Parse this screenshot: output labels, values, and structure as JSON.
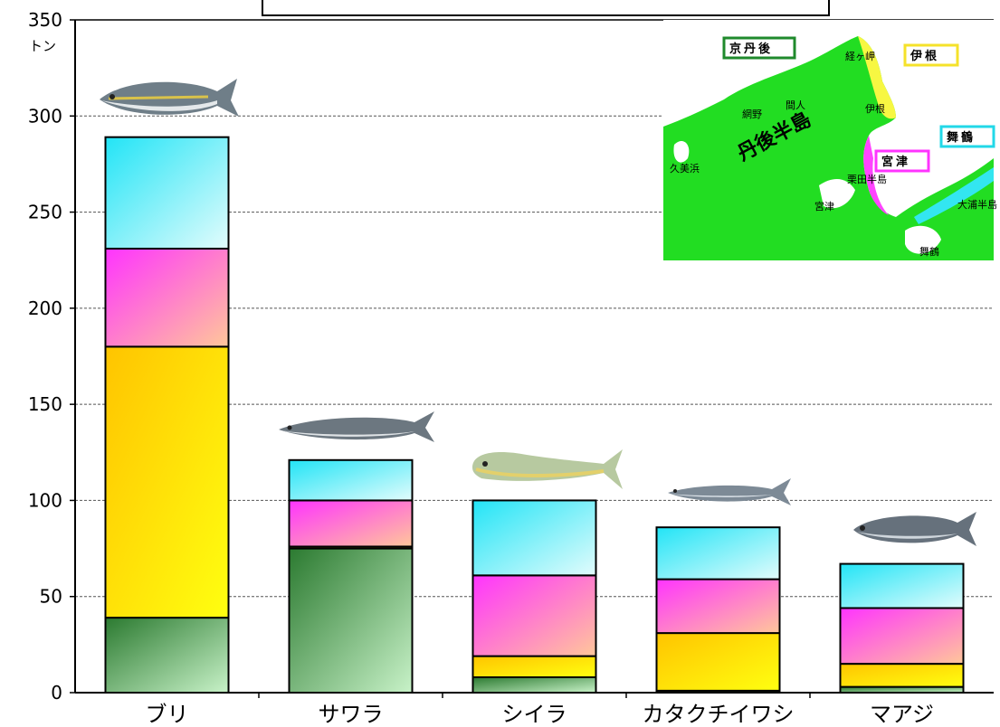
{
  "chart_data": {
    "type": "bar",
    "stacked": true,
    "unit": "トン",
    "ylim": [
      0,
      350
    ],
    "yticks": [
      "0",
      "50",
      "100",
      "150",
      "200",
      "250",
      "300",
      "350"
    ],
    "grid": true,
    "categories": [
      "ブリ",
      "サワラ",
      "シイラ",
      "カタクチイワシ",
      "マアジ"
    ],
    "series": [
      {
        "name": "京丹後",
        "color": "#2e8b3a",
        "values": [
          39,
          75,
          8,
          1,
          3
        ]
      },
      {
        "name": "伊根",
        "color": "#ffd700",
        "values": [
          141,
          1,
          11,
          30,
          12
        ]
      },
      {
        "name": "宮津",
        "color": "#ff44ff",
        "values": [
          51,
          24,
          42,
          28,
          29
        ]
      },
      {
        "name": "舞鶴",
        "color": "#33e6f0",
        "values": [
          58,
          21,
          39,
          27,
          23
        ]
      }
    ]
  },
  "map": {
    "region_labels": [
      "京丹後",
      "伊根",
      "宮津",
      "舞鶴"
    ],
    "place_labels": {
      "peninsula": "丹後半島",
      "cape": "経ヶ岬",
      "taiza": "間人",
      "amino": "網野",
      "kumihama": "久美浜",
      "ine": "伊根",
      "miyazu": "宮津",
      "oshima": "栗田半島",
      "maizuru": "舞鶴",
      "oura": "大浦半島"
    }
  }
}
